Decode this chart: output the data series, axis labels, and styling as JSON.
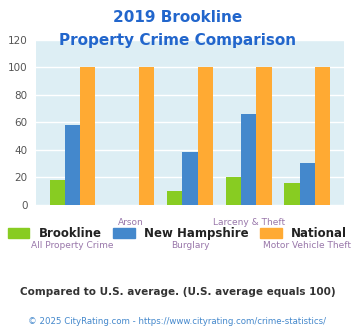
{
  "title_line1": "2019 Brookline",
  "title_line2": "Property Crime Comparison",
  "categories": [
    "All Property Crime",
    "Arson",
    "Burglary",
    "Larceny & Theft",
    "Motor Vehicle Theft"
  ],
  "brookline": [
    18,
    0,
    10,
    20,
    16
  ],
  "new_hampshire": [
    58,
    0,
    38,
    66,
    30
  ],
  "national": [
    100,
    100,
    100,
    100,
    100
  ],
  "brookline_color": "#88cc22",
  "nh_color": "#4488cc",
  "national_color": "#ffaa33",
  "ylim": [
    0,
    120
  ],
  "yticks": [
    0,
    20,
    40,
    60,
    80,
    100,
    120
  ],
  "bg_color": "#ddeef4",
  "title_color": "#2266cc",
  "xlabel_color": "#9977aa",
  "legend_text_color": "#222222",
  "footnote1": "Compared to U.S. average. (U.S. average equals 100)",
  "footnote2": "© 2025 CityRating.com - https://www.cityrating.com/crime-statistics/",
  "footnote1_color": "#333333",
  "footnote2_color": "#4488cc"
}
